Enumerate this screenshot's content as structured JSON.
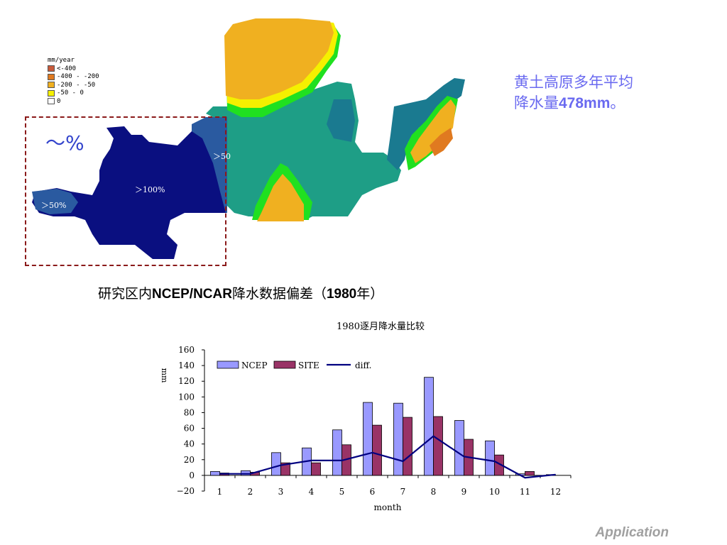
{
  "map": {
    "legend_title": "mm/year",
    "legend_items": [
      {
        "label": "<-400",
        "color": "#c85a3a"
      },
      {
        "label": "-400 - -200",
        "color": "#e07a20"
      },
      {
        "label": "-200 - -50",
        "color": "#f0b020"
      },
      {
        "label": "-50 - 0",
        "color": "#f5f000"
      },
      {
        "label": "0",
        "color": "#ffffff"
      }
    ],
    "zone_colors": {
      "dark_blue": "#0a0f80",
      "mid_blue": "#2a5aa0",
      "teal": "#1e9e86",
      "dark_teal": "#1a7a90",
      "green": "#20e020",
      "yellow": "#f5f000",
      "orange": "#f0b020",
      "dark_orange": "#e07a20"
    },
    "labels": {
      "gt100": "＞100%",
      "gt50_left": "＞50%",
      "gt50_right": "＞50"
    },
    "percent_symbol": "～%",
    "box_color": "#8b1a1a"
  },
  "side_note": {
    "line1": "黄土高原多年平均",
    "line2_prefix": "降水量",
    "line2_value": "478mm",
    "line2_suffix": "。"
  },
  "caption": {
    "prefix": "研究区内",
    "bold": "NCEP/NCAR",
    "middle": "降水数据偏差（",
    "year": "1980",
    "suffix": "年）"
  },
  "footer": "Application",
  "chart_data": {
    "type": "bar",
    "title": "1980逐月降水量比较",
    "xlabel": "month",
    "ylabel": "mm",
    "ylim": [
      -20,
      160
    ],
    "yticks": [
      -20,
      0,
      20,
      40,
      60,
      80,
      100,
      120,
      140,
      160
    ],
    "categories": [
      "1",
      "2",
      "3",
      "4",
      "5",
      "6",
      "7",
      "8",
      "9",
      "10",
      "11",
      "12"
    ],
    "series": [
      {
        "name": "NCEP",
        "kind": "bar",
        "color": "#9999ff",
        "values": [
          5,
          6,
          29,
          35,
          58,
          93,
          92,
          125,
          70,
          44,
          2,
          1
        ]
      },
      {
        "name": "SITE",
        "kind": "bar",
        "color": "#993366",
        "values": [
          3,
          4,
          16,
          16,
          39,
          64,
          74,
          75,
          46,
          26,
          5,
          0
        ]
      },
      {
        "name": "diff.",
        "kind": "line",
        "color": "#000080",
        "values": [
          2,
          2,
          13,
          19,
          19,
          29,
          18,
          50,
          24,
          18,
          -3,
          1
        ]
      }
    ],
    "legend_position": "top-left",
    "grid": false
  }
}
